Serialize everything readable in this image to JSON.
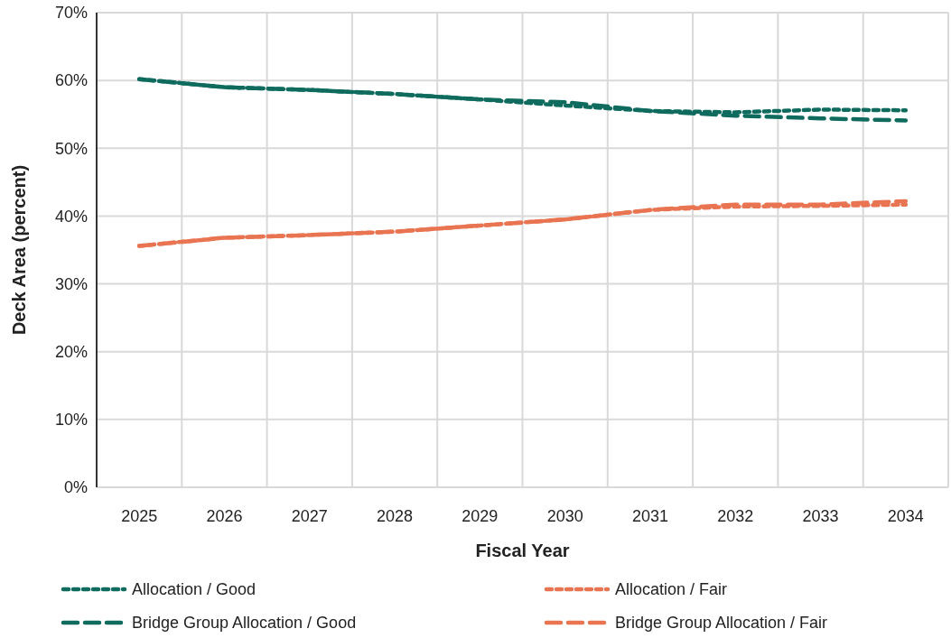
{
  "chart_data": {
    "type": "line",
    "xlabel": "Fiscal Year",
    "ylabel": "Deck Area (percent)",
    "categories": [
      "2025",
      "2026",
      "2027",
      "2028",
      "2029",
      "2030",
      "2031",
      "2032",
      "2033",
      "2034"
    ],
    "ylim": [
      0,
      70
    ],
    "yticks": [
      {
        "value": 0,
        "label": "0%"
      },
      {
        "value": 10,
        "label": "10%"
      },
      {
        "value": 20,
        "label": "20%"
      },
      {
        "value": 30,
        "label": "30%"
      },
      {
        "value": 40,
        "label": "40%"
      },
      {
        "value": 50,
        "label": "50%"
      },
      {
        "value": 60,
        "label": "60%"
      },
      {
        "value": 70,
        "label": "70%"
      }
    ],
    "grid": true,
    "legend": "bottom",
    "marker": "none",
    "series": [
      {
        "name": "Allocation / Good",
        "color": "#0e6b5e",
        "line_style": "dotted",
        "values": [
          60.2,
          59.0,
          58.6,
          58.0,
          57.2,
          56.3,
          55.5,
          55.3,
          55.7,
          55.6
        ]
      },
      {
        "name": "Bridge Group Allocation / Good",
        "color": "#0e6b5e",
        "line_style": "dashed",
        "values": [
          60.2,
          59.0,
          58.6,
          58.0,
          57.2,
          56.8,
          55.5,
          54.8,
          54.4,
          54.1
        ]
      },
      {
        "name": "Allocation / Fair",
        "color": "#e97452",
        "line_style": "dotted",
        "values": [
          35.6,
          36.8,
          37.2,
          37.7,
          38.6,
          39.5,
          40.9,
          41.4,
          41.5,
          41.7
        ]
      },
      {
        "name": "Bridge Group Allocation / Fair",
        "color": "#e97452",
        "line_style": "dashed",
        "values": [
          35.6,
          36.8,
          37.2,
          37.7,
          38.6,
          39.5,
          40.9,
          41.7,
          41.7,
          42.2
        ]
      }
    ]
  }
}
